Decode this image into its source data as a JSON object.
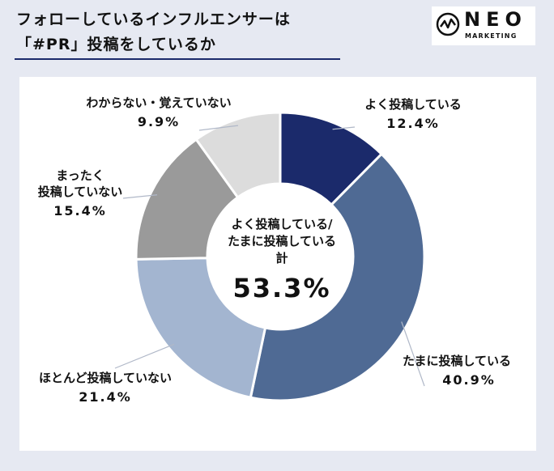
{
  "header": {
    "title_line1": "フォローしているインフルエンサーは",
    "title_line2": "「#PR」投稿をしているか"
  },
  "logo": {
    "word": "NEO",
    "sub": "MARKETING",
    "icon": "zigzag-circle-icon"
  },
  "chart_data": {
    "type": "pie",
    "donut": true,
    "categories": [
      "よく投稿している",
      "たまに投稿している",
      "ほとんど投稿していない",
      "まったく投稿していない",
      "わからない・覚えていない"
    ],
    "values": [
      12.4,
      40.9,
      21.4,
      15.4,
      9.9
    ],
    "value_labels": [
      "12.4%",
      "40.9%",
      "21.4%",
      "15.4%",
      "9.9%"
    ],
    "colors": [
      "#1b2a6b",
      "#4f6a94",
      "#a3b5d0",
      "#9a9a9a",
      "#dcdcdc"
    ],
    "center": {
      "line1": "よく投稿している/",
      "line2": "たまに投稿している",
      "line3": "計",
      "value": "53.3%"
    },
    "start_angle": "top",
    "direction": "clockwise"
  },
  "labels": {
    "often": {
      "line1": "よく投稿している",
      "pct": "12.4%"
    },
    "sometimes": {
      "line1": "たまに投稿している",
      "pct": "40.9%"
    },
    "rarely": {
      "line1": "ほとんど投稿していない",
      "pct": "21.4%"
    },
    "never": {
      "line1": "まったく",
      "line2": "投稿していない",
      "pct": "15.4%"
    },
    "unknown": {
      "line1": "わからない・覚えていない",
      "pct": "9.9%"
    }
  }
}
